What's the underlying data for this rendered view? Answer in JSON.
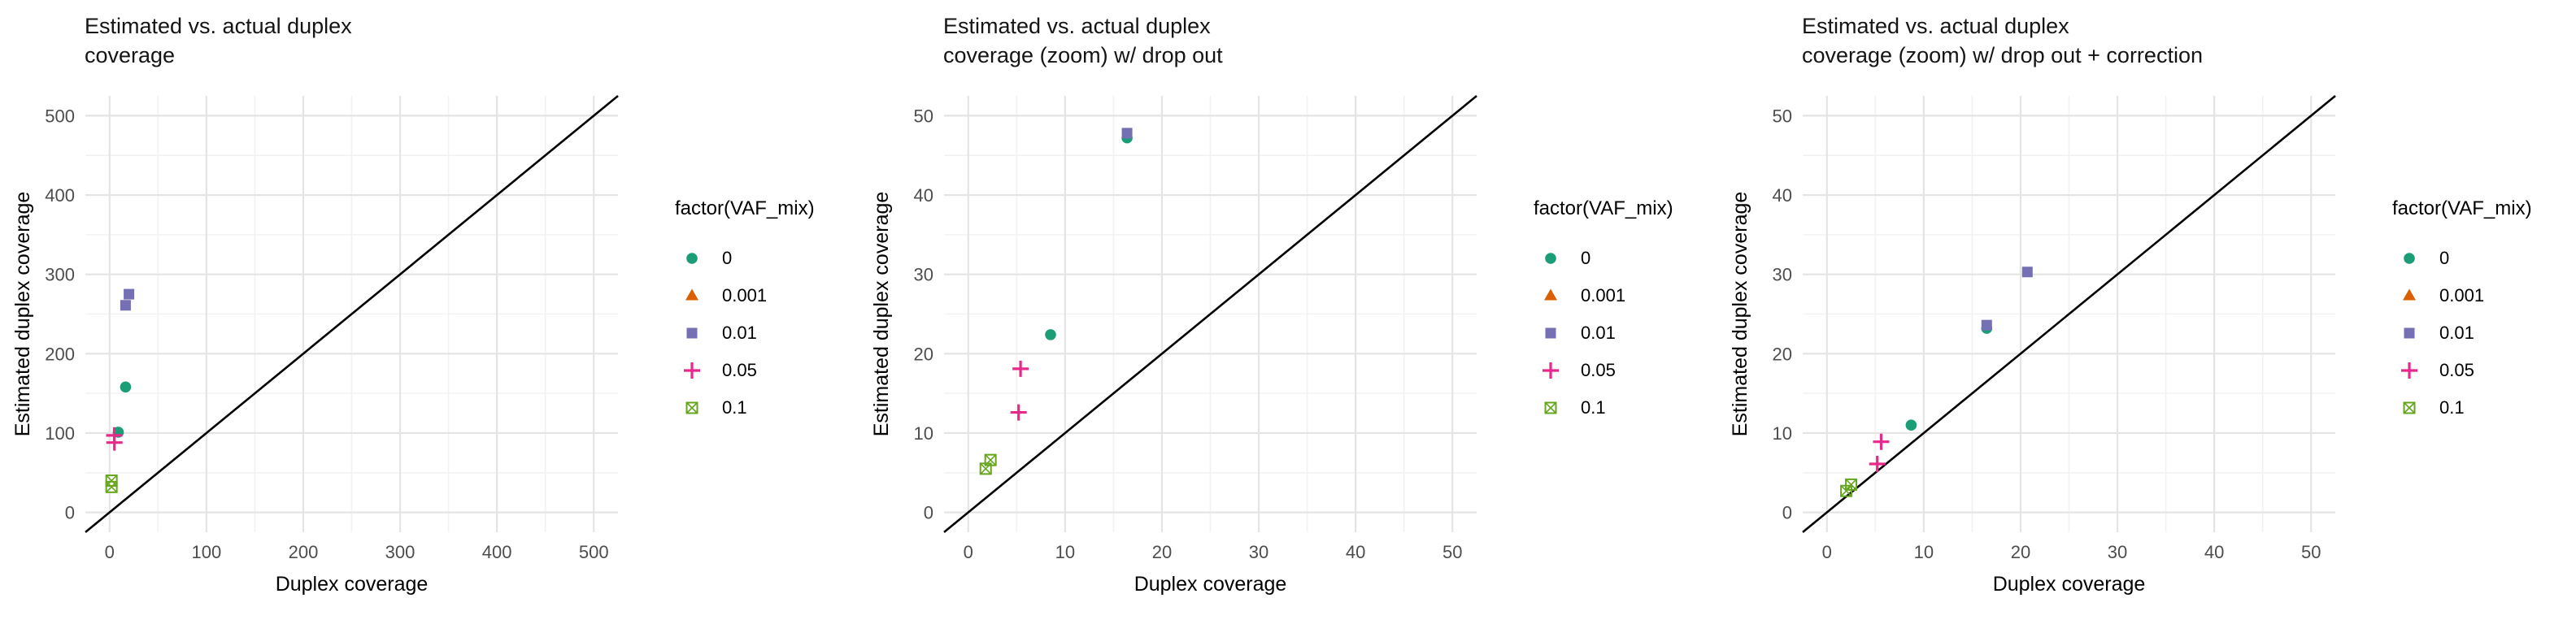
{
  "figure": {
    "background": "#ffffff",
    "grid_major_color": "#e4e4e4",
    "grid_minor_color": "#f2f2f2",
    "identity_line_color": "#000000",
    "tick_label_color": "#4d4d4d"
  },
  "chart_data": [
    {
      "type": "scatter",
      "title": "Estimated vs. actual duplex\ncoverage",
      "xlabel": "Duplex coverage",
      "ylabel": "Estimated duplex coverage",
      "legend_title": "factor(VAF_mix)",
      "legend_position": "right",
      "grid": true,
      "identity_line": true,
      "xlim": [
        -25,
        525
      ],
      "ylim": [
        -25,
        525
      ],
      "xticks": [
        0,
        100,
        200,
        300,
        400,
        500
      ],
      "yticks": [
        0,
        100,
        200,
        300,
        400,
        500
      ],
      "minor_step": 50,
      "series": [
        {
          "name": "0",
          "shape": "circle",
          "color": "#1B9E77",
          "points": [
            [
              16.5,
              158
            ],
            [
              9,
              101
            ]
          ]
        },
        {
          "name": "0.001",
          "shape": "triangle",
          "color": "#D95F02",
          "points": []
        },
        {
          "name": "0.01",
          "shape": "square",
          "color": "#7570B3",
          "points": [
            [
              20,
              275
            ],
            [
              16.5,
              261
            ]
          ]
        },
        {
          "name": "0.05",
          "shape": "plus",
          "color": "#E7298A",
          "points": [
            [
              4.8,
              97
            ],
            [
              5,
              88
            ]
          ]
        },
        {
          "name": "0.1",
          "shape": "boxed-x",
          "color": "#66A61E",
          "points": [
            [
              2,
              40
            ],
            [
              2,
              32
            ]
          ]
        }
      ]
    },
    {
      "type": "scatter",
      "title": "Estimated vs. actual duplex\ncoverage (zoom) w/ drop out",
      "xlabel": "Duplex coverage",
      "ylabel": "Estimated duplex coverage",
      "legend_title": "factor(VAF_mix)",
      "legend_position": "right",
      "grid": true,
      "identity_line": true,
      "xlim": [
        -2.5,
        52.5
      ],
      "ylim": [
        -2.5,
        52.5
      ],
      "xticks": [
        0,
        10,
        20,
        30,
        40,
        50
      ],
      "yticks": [
        0,
        10,
        20,
        30,
        40,
        50
      ],
      "minor_step": 5,
      "series": [
        {
          "name": "0",
          "shape": "circle",
          "color": "#1B9E77",
          "points": [
            [
              16.4,
              47.2
            ],
            [
              8.5,
              22.4
            ]
          ]
        },
        {
          "name": "0.001",
          "shape": "triangle",
          "color": "#D95F02",
          "points": []
        },
        {
          "name": "0.01",
          "shape": "square",
          "color": "#7570B3",
          "points": [
            [
              16.4,
              47.8
            ]
          ]
        },
        {
          "name": "0.05",
          "shape": "plus",
          "color": "#E7298A",
          "points": [
            [
              5.4,
              18.1
            ],
            [
              5.2,
              12.6
            ]
          ]
        },
        {
          "name": "0.1",
          "shape": "boxed-x",
          "color": "#66A61E",
          "points": [
            [
              2.3,
              6.6
            ],
            [
              1.8,
              5.5
            ]
          ]
        }
      ]
    },
    {
      "type": "scatter",
      "title": "Estimated vs. actual duplex\ncoverage (zoom) w/ drop out + correction",
      "xlabel": "Duplex coverage",
      "ylabel": "Estimated duplex coverage",
      "legend_title": "factor(VAF_mix)",
      "legend_position": "right",
      "grid": true,
      "identity_line": true,
      "xlim": [
        -2.5,
        52.5
      ],
      "ylim": [
        -2.5,
        52.5
      ],
      "xticks": [
        0,
        10,
        20,
        30,
        40,
        50
      ],
      "yticks": [
        0,
        10,
        20,
        30,
        40,
        50
      ],
      "minor_step": 5,
      "series": [
        {
          "name": "0",
          "shape": "circle",
          "color": "#1B9E77",
          "points": [
            [
              16.5,
              23.2
            ],
            [
              8.7,
              11
            ]
          ]
        },
        {
          "name": "0.001",
          "shape": "triangle",
          "color": "#D95F02",
          "points": []
        },
        {
          "name": "0.01",
          "shape": "square",
          "color": "#7570B3",
          "points": [
            [
              20.7,
              30.3
            ],
            [
              16.5,
              23.6
            ]
          ]
        },
        {
          "name": "0.05",
          "shape": "plus",
          "color": "#E7298A",
          "points": [
            [
              5.6,
              8.9
            ],
            [
              5.2,
              6.1
            ]
          ]
        },
        {
          "name": "0.1",
          "shape": "boxed-x",
          "color": "#66A61E",
          "points": [
            [
              2.5,
              3.5
            ],
            [
              2,
              2.7
            ]
          ]
        }
      ]
    }
  ]
}
